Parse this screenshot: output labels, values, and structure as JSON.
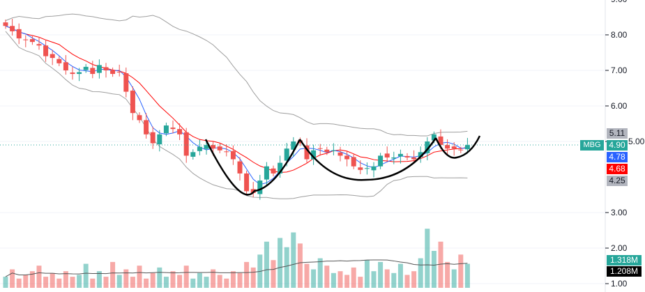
{
  "chart_data": {
    "type": "candlestick",
    "symbol": "MBG",
    "y_ticks": [
      "9.00",
      "8.00",
      "7.00",
      "6.00",
      "5.00",
      "3.00",
      "2.00",
      "1.00"
    ],
    "y_tick_values": [
      9,
      8,
      7,
      6,
      5,
      3,
      2,
      1
    ],
    "ylim": [
      0.9,
      9.0
    ],
    "closes": [
      8.25,
      8.1,
      7.9,
      7.85,
      7.8,
      7.7,
      7.4,
      7.35,
      7.2,
      7.0,
      6.9,
      6.95,
      7.1,
      6.9,
      7.15,
      7.0,
      6.9,
      6.95,
      6.4,
      5.8,
      5.6,
      5.2,
      4.95,
      5.2,
      5.45,
      5.35,
      5.2,
      4.6,
      4.7,
      4.85,
      4.9,
      4.8,
      4.75,
      4.7,
      4.5,
      4.1,
      3.6,
      3.55,
      3.9,
      4.3,
      4.1,
      4.4,
      4.8,
      5.0,
      4.95,
      4.5,
      4.75,
      4.8,
      4.7,
      4.75,
      4.6,
      4.5,
      4.3,
      4.2,
      4.25,
      4.3,
      4.6,
      4.55,
      4.55,
      4.65,
      4.55,
      4.5,
      4.7,
      5.0,
      5.2,
      4.9,
      4.8,
      4.8,
      4.75,
      4.9
    ],
    "volumes_m": [
      0.6,
      1.0,
      0.5,
      0.7,
      0.9,
      1.2,
      0.6,
      0.8,
      0.5,
      0.9,
      0.6,
      0.7,
      1.3,
      0.5,
      0.9,
      0.6,
      1.4,
      0.7,
      1.0,
      0.6,
      1.2,
      0.5,
      0.8,
      1.1,
      0.6,
      0.9,
      0.7,
      1.2,
      0.5,
      0.8,
      0.6,
      1.0,
      0.7,
      0.5,
      0.9,
      0.8,
      1.4,
      1.1,
      1.8,
      2.5,
      1.5,
      2.7,
      2.2,
      3.0,
      2.4,
      1.3,
      1.0,
      1.6,
      1.2,
      0.8,
      0.9,
      0.7,
      1.1,
      0.6,
      1.5,
      0.9,
      1.4,
      1.0,
      0.8,
      1.3,
      0.7,
      0.9,
      1.6,
      3.2,
      2.0,
      2.5,
      1.4,
      1.0,
      1.8,
      1.3
    ],
    "price_labels": {
      "last": "4.90",
      "upper_band": "5.11",
      "ma_fast": "4.78",
      "ma_slow": "4.68",
      "lower_band": "4.25"
    },
    "volume_labels": {
      "volume": "1.318M",
      "volume_ma": "1.208M"
    },
    "colors": {
      "up": "#26a69a",
      "down": "#ef5350",
      "ma_fast": "#2962ff",
      "ma_slow": "#ff0000",
      "bands": "#9e9e9e"
    }
  }
}
